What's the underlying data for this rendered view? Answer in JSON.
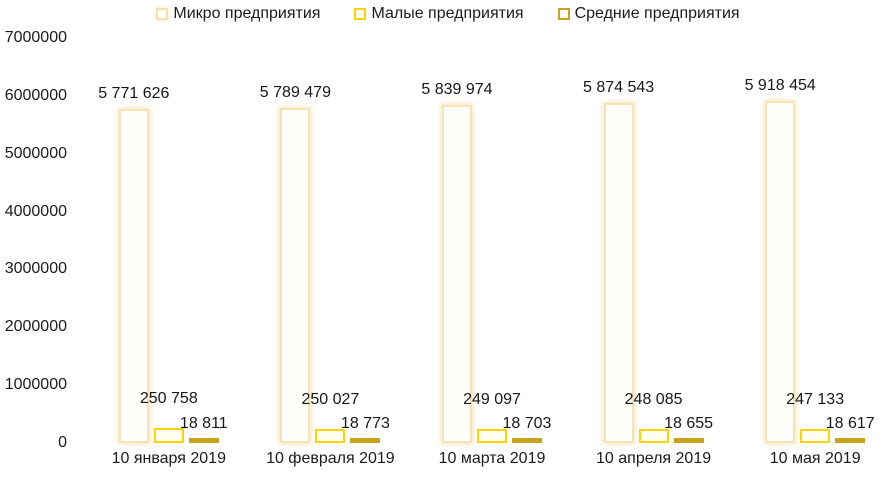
{
  "chart_data": {
    "type": "bar",
    "title": "",
    "xlabel": "",
    "ylabel": "",
    "ylim": [
      0,
      7000000
    ],
    "grid": false,
    "legend_position": "top",
    "y_ticks": [
      "7000000",
      "6000000",
      "5000000",
      "4000000",
      "3000000",
      "2000000",
      "1000000",
      "0"
    ],
    "categories": [
      "10 января 2019",
      "10 февраля 2019",
      "10 марта 2019",
      "10 апреля 2019",
      "10 мая 2019"
    ],
    "series": [
      {
        "name": "Микро предприятия",
        "values": [
          5771626,
          5789479,
          5839974,
          5874543,
          5918454
        ],
        "labels": [
          "5 771 626",
          "5 789 479",
          "5 839 974",
          "5 874 543",
          "5 918 454"
        ],
        "outline_color": "#f7e2b6",
        "fill_color": "#fffefa"
      },
      {
        "name": "Малые предприятия",
        "values": [
          250758,
          250027,
          249097,
          248085,
          247133
        ],
        "labels": [
          "250 758",
          "250 027",
          "249 097",
          "248 085",
          "247 133"
        ],
        "outline_color": "#ffd400",
        "fill_color": "#fffdf0"
      },
      {
        "name": "Средние предприятия",
        "values": [
          18811,
          18773,
          18703,
          18655,
          18617
        ],
        "labels": [
          "18 811",
          "18 773",
          "18 703",
          "18 655",
          "18 617"
        ],
        "outline_color": "#c9a227",
        "fill_color": "#c9a21c"
      }
    ]
  }
}
